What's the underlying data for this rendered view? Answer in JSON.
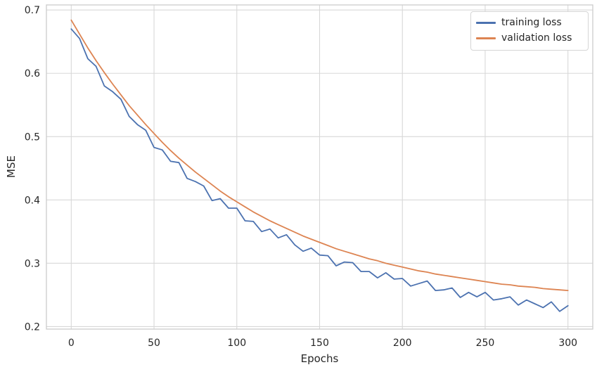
{
  "chart_data": {
    "type": "line",
    "title": "",
    "xlabel": "Epochs",
    "ylabel": "MSE",
    "xlim": [
      -15,
      315
    ],
    "ylim": [
      0.196,
      0.708
    ],
    "grid": true,
    "legend_position": "upper right",
    "grid_color": "#d8d8d8",
    "frame_color": "#cccccc",
    "xticks": {
      "values": [
        0,
        50,
        100,
        150,
        200,
        250,
        300
      ],
      "labels": [
        "0",
        "50",
        "100",
        "150",
        "200",
        "250",
        "300"
      ]
    },
    "yticks": {
      "values": [
        0.2,
        0.3,
        0.4,
        0.5,
        0.6,
        0.7
      ],
      "labels": [
        "0.2",
        "0.3",
        "0.4",
        "0.5",
        "0.6",
        "0.7"
      ]
    },
    "x": [
      0,
      5,
      10,
      15,
      20,
      25,
      30,
      35,
      40,
      45,
      50,
      55,
      60,
      65,
      70,
      75,
      80,
      85,
      90,
      95,
      100,
      105,
      110,
      115,
      120,
      125,
      130,
      135,
      140,
      145,
      150,
      155,
      160,
      165,
      170,
      175,
      180,
      185,
      190,
      195,
      200,
      205,
      210,
      215,
      220,
      225,
      230,
      235,
      240,
      245,
      250,
      255,
      260,
      265,
      270,
      275,
      280,
      285,
      290,
      295,
      300
    ],
    "series": [
      {
        "name": "training loss",
        "color": "#4C72B0",
        "values": [
          0.67,
          0.655,
          0.623,
          0.611,
          0.58,
          0.571,
          0.559,
          0.532,
          0.519,
          0.51,
          0.483,
          0.479,
          0.461,
          0.459,
          0.434,
          0.429,
          0.422,
          0.399,
          0.402,
          0.387,
          0.387,
          0.367,
          0.366,
          0.35,
          0.354,
          0.34,
          0.345,
          0.329,
          0.319,
          0.324,
          0.313,
          0.312,
          0.296,
          0.302,
          0.301,
          0.287,
          0.287,
          0.277,
          0.285,
          0.275,
          0.276,
          0.264,
          0.268,
          0.272,
          0.257,
          0.258,
          0.261,
          0.246,
          0.254,
          0.247,
          0.254,
          0.242,
          0.244,
          0.247,
          0.234,
          0.242,
          0.236,
          0.23,
          0.239,
          0.224,
          0.233
        ]
      },
      {
        "name": "validation loss",
        "color": "#DD8452",
        "values": [
          0.684,
          0.662,
          0.64,
          0.62,
          0.601,
          0.583,
          0.566,
          0.549,
          0.534,
          0.519,
          0.505,
          0.491,
          0.478,
          0.466,
          0.455,
          0.444,
          0.434,
          0.424,
          0.414,
          0.405,
          0.397,
          0.389,
          0.381,
          0.374,
          0.367,
          0.361,
          0.355,
          0.349,
          0.343,
          0.338,
          0.333,
          0.328,
          0.323,
          0.319,
          0.315,
          0.311,
          0.307,
          0.304,
          0.3,
          0.297,
          0.294,
          0.291,
          0.288,
          0.286,
          0.283,
          0.281,
          0.279,
          0.277,
          0.275,
          0.273,
          0.271,
          0.269,
          0.267,
          0.266,
          0.264,
          0.263,
          0.262,
          0.26,
          0.259,
          0.258,
          0.257
        ]
      }
    ]
  }
}
